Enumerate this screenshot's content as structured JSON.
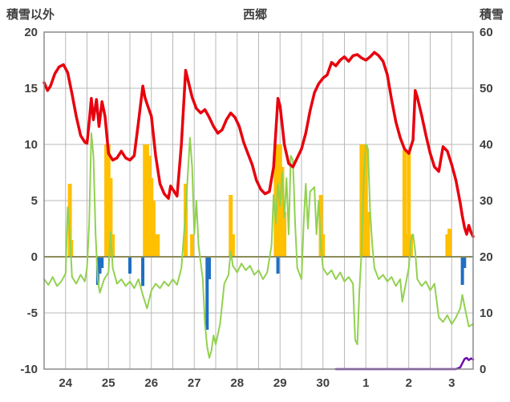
{
  "header": {
    "left_axis_title": "積雪以外",
    "title": "西郷",
    "right_axis_title": "積雪"
  },
  "chart_data": {
    "type": "line",
    "title": "西郷",
    "left_axis": {
      "label": "積雪以外",
      "min": -10,
      "max": 20,
      "ticks": [
        20,
        15,
        10,
        5,
        0,
        -5,
        -10
      ]
    },
    "right_axis": {
      "label": "積雪",
      "min": 0,
      "max": 60,
      "ticks": [
        60,
        50,
        40,
        30,
        20,
        10,
        0
      ]
    },
    "x_axis": {
      "day_labels": [
        "24",
        "25",
        "26",
        "27",
        "28",
        "29",
        "30",
        "1",
        "2",
        "3"
      ],
      "domain_days": 10,
      "gridline_step_days": 0.5
    },
    "colors": {
      "temperature_line": "#e8000d",
      "green_line": "#92d14f",
      "precip_bars": "#ffc000",
      "negative_bars": "#1f6fc4",
      "snow_depth_line": "#6a0dad",
      "grid": "#b8b8b8",
      "zero_line": "#8c8c5a",
      "frame": "#8c8c8c",
      "axis_text": "#3f3f3f"
    },
    "series": {
      "temperature_red": {
        "axis": "left",
        "points": [
          [
            0.0,
            15.5
          ],
          [
            0.08,
            14.8
          ],
          [
            0.15,
            15.2
          ],
          [
            0.25,
            16.3
          ],
          [
            0.35,
            16.9
          ],
          [
            0.45,
            17.1
          ],
          [
            0.55,
            16.4
          ],
          [
            0.65,
            14.5
          ],
          [
            0.75,
            12.5
          ],
          [
            0.85,
            10.8
          ],
          [
            0.95,
            10.2
          ],
          [
            1.0,
            10.1
          ],
          [
            1.05,
            12.0
          ],
          [
            1.1,
            14.1
          ],
          [
            1.15,
            12.2
          ],
          [
            1.22,
            14.0
          ],
          [
            1.28,
            11.6
          ],
          [
            1.35,
            13.8
          ],
          [
            1.42,
            12.5
          ],
          [
            1.5,
            9.2
          ],
          [
            1.6,
            8.6
          ],
          [
            1.7,
            8.8
          ],
          [
            1.8,
            9.4
          ],
          [
            1.9,
            8.8
          ],
          [
            2.0,
            8.6
          ],
          [
            2.1,
            9.0
          ],
          [
            2.2,
            12.0
          ],
          [
            2.3,
            15.2
          ],
          [
            2.35,
            14.2
          ],
          [
            2.4,
            13.6
          ],
          [
            2.5,
            12.5
          ],
          [
            2.6,
            9.0
          ],
          [
            2.7,
            6.5
          ],
          [
            2.8,
            5.6
          ],
          [
            2.9,
            5.2
          ],
          [
            2.95,
            6.3
          ],
          [
            3.0,
            6.0
          ],
          [
            3.1,
            5.4
          ],
          [
            3.2,
            10.0
          ],
          [
            3.3,
            16.6
          ],
          [
            3.35,
            15.8
          ],
          [
            3.45,
            14.2
          ],
          [
            3.55,
            13.2
          ],
          [
            3.65,
            12.8
          ],
          [
            3.75,
            13.1
          ],
          [
            3.85,
            12.4
          ],
          [
            3.95,
            11.6
          ],
          [
            4.05,
            11.0
          ],
          [
            4.15,
            11.3
          ],
          [
            4.25,
            12.2
          ],
          [
            4.35,
            12.8
          ],
          [
            4.45,
            12.4
          ],
          [
            4.55,
            11.6
          ],
          [
            4.65,
            10.2
          ],
          [
            4.75,
            9.2
          ],
          [
            4.85,
            8.2
          ],
          [
            4.95,
            6.8
          ],
          [
            5.05,
            6.0
          ],
          [
            5.15,
            5.6
          ],
          [
            5.25,
            5.8
          ],
          [
            5.35,
            8.0
          ],
          [
            5.45,
            14.1
          ],
          [
            5.5,
            13.4
          ],
          [
            5.6,
            10.0
          ],
          [
            5.7,
            8.3
          ],
          [
            5.8,
            8.0
          ],
          [
            5.9,
            8.8
          ],
          [
            6.0,
            9.6
          ],
          [
            6.1,
            11.0
          ],
          [
            6.2,
            13.0
          ],
          [
            6.3,
            14.6
          ],
          [
            6.4,
            15.4
          ],
          [
            6.5,
            15.9
          ],
          [
            6.6,
            16.2
          ],
          [
            6.7,
            17.3
          ],
          [
            6.8,
            17.0
          ],
          [
            6.9,
            17.5
          ],
          [
            7.0,
            17.8
          ],
          [
            7.1,
            17.4
          ],
          [
            7.2,
            17.9
          ],
          [
            7.3,
            18.0
          ],
          [
            7.4,
            17.7
          ],
          [
            7.5,
            17.5
          ],
          [
            7.6,
            17.8
          ],
          [
            7.7,
            18.2
          ],
          [
            7.8,
            17.9
          ],
          [
            7.9,
            17.4
          ],
          [
            8.0,
            16.2
          ],
          [
            8.1,
            14.0
          ],
          [
            8.2,
            12.0
          ],
          [
            8.3,
            10.6
          ],
          [
            8.4,
            9.6
          ],
          [
            8.5,
            9.2
          ],
          [
            8.6,
            10.4
          ],
          [
            8.65,
            14.8
          ],
          [
            8.7,
            14.2
          ],
          [
            8.8,
            12.6
          ],
          [
            8.9,
            10.8
          ],
          [
            9.0,
            9.2
          ],
          [
            9.1,
            8.0
          ],
          [
            9.2,
            7.6
          ],
          [
            9.3,
            9.8
          ],
          [
            9.4,
            9.4
          ],
          [
            9.5,
            8.2
          ],
          [
            9.6,
            6.8
          ],
          [
            9.7,
            4.8
          ],
          [
            9.75,
            3.6
          ],
          [
            9.8,
            2.6
          ],
          [
            9.85,
            2.0
          ],
          [
            9.9,
            2.8
          ],
          [
            9.95,
            2.2
          ],
          [
            10.0,
            1.8
          ]
        ]
      },
      "green_line": {
        "axis": "left",
        "points": [
          [
            0.0,
            -2.0
          ],
          [
            0.1,
            -2.5
          ],
          [
            0.2,
            -1.8
          ],
          [
            0.3,
            -2.6
          ],
          [
            0.4,
            -2.2
          ],
          [
            0.5,
            -1.5
          ],
          [
            0.55,
            4.4
          ],
          [
            0.6,
            2.0
          ],
          [
            0.65,
            -1.8
          ],
          [
            0.75,
            -2.4
          ],
          [
            0.85,
            -1.6
          ],
          [
            0.95,
            -2.2
          ],
          [
            1.0,
            -1.0
          ],
          [
            1.05,
            3.0
          ],
          [
            1.1,
            11.0
          ],
          [
            1.15,
            9.0
          ],
          [
            1.2,
            2.0
          ],
          [
            1.25,
            -2.0
          ],
          [
            1.3,
            -3.2
          ],
          [
            1.4,
            -2.0
          ],
          [
            1.5,
            -1.4
          ],
          [
            1.55,
            2.2
          ],
          [
            1.6,
            -1.0
          ],
          [
            1.7,
            -2.4
          ],
          [
            1.8,
            -2.0
          ],
          [
            1.9,
            -2.6
          ],
          [
            2.0,
            -2.2
          ],
          [
            2.1,
            -2.8
          ],
          [
            2.2,
            -2.0
          ],
          [
            2.3,
            -3.4
          ],
          [
            2.4,
            -4.6
          ],
          [
            2.5,
            -3.0
          ],
          [
            2.6,
            -2.4
          ],
          [
            2.7,
            -2.8
          ],
          [
            2.8,
            -2.2
          ],
          [
            2.9,
            -2.6
          ],
          [
            3.0,
            -2.0
          ],
          [
            3.1,
            -2.5
          ],
          [
            3.2,
            -1.0
          ],
          [
            3.3,
            4.0
          ],
          [
            3.4,
            10.6
          ],
          [
            3.45,
            8.0
          ],
          [
            3.5,
            2.0
          ],
          [
            3.55,
            5.0
          ],
          [
            3.6,
            1.0
          ],
          [
            3.7,
            -2.0
          ],
          [
            3.75,
            -6.0
          ],
          [
            3.8,
            -8.0
          ],
          [
            3.85,
            -9.0
          ],
          [
            3.9,
            -8.4
          ],
          [
            3.95,
            -7.0
          ],
          [
            4.0,
            -7.8
          ],
          [
            4.1,
            -6.0
          ],
          [
            4.2,
            -2.4
          ],
          [
            4.3,
            -1.6
          ],
          [
            4.35,
            0.5
          ],
          [
            4.4,
            -0.8
          ],
          [
            4.5,
            -1.4
          ],
          [
            4.6,
            -0.6
          ],
          [
            4.7,
            -1.2
          ],
          [
            4.8,
            -0.8
          ],
          [
            4.9,
            -1.6
          ],
          [
            5.0,
            -1.2
          ],
          [
            5.1,
            -2.0
          ],
          [
            5.2,
            -1.4
          ],
          [
            5.3,
            1.0
          ],
          [
            5.35,
            5.5
          ],
          [
            5.4,
            3.0
          ],
          [
            5.45,
            6.5
          ],
          [
            5.5,
            4.5
          ],
          [
            5.55,
            7.5
          ],
          [
            5.6,
            3.5
          ],
          [
            5.65,
            7.0
          ],
          [
            5.7,
            2.0
          ],
          [
            5.75,
            9.0
          ],
          [
            5.8,
            8.6
          ],
          [
            5.85,
            3.0
          ],
          [
            5.9,
            -1.0
          ],
          [
            6.0,
            -2.0
          ],
          [
            6.05,
            3.0
          ],
          [
            6.1,
            6.5
          ],
          [
            6.15,
            2.5
          ],
          [
            6.2,
            5.8
          ],
          [
            6.3,
            6.2
          ],
          [
            6.35,
            2.0
          ],
          [
            6.4,
            5.0
          ],
          [
            6.45,
            1.0
          ],
          [
            6.5,
            -1.0
          ],
          [
            6.6,
            -1.6
          ],
          [
            6.7,
            -1.2
          ],
          [
            6.8,
            -2.0
          ],
          [
            6.9,
            -1.4
          ],
          [
            7.0,
            -2.2
          ],
          [
            7.1,
            -1.8
          ],
          [
            7.2,
            -2.4
          ],
          [
            7.25,
            -7.4
          ],
          [
            7.3,
            -7.8
          ],
          [
            7.35,
            -3.0
          ],
          [
            7.4,
            0.5
          ],
          [
            7.45,
            7.0
          ],
          [
            7.5,
            10.0
          ],
          [
            7.55,
            9.6
          ],
          [
            7.6,
            4.0
          ],
          [
            7.65,
            1.0
          ],
          [
            7.7,
            -1.0
          ],
          [
            7.8,
            -2.0
          ],
          [
            7.9,
            -1.6
          ],
          [
            8.0,
            -2.2
          ],
          [
            8.1,
            -1.8
          ],
          [
            8.2,
            -2.6
          ],
          [
            8.3,
            -2.0
          ],
          [
            8.35,
            -4.0
          ],
          [
            8.4,
            -3.0
          ],
          [
            8.5,
            -1.0
          ],
          [
            8.55,
            1.5
          ],
          [
            8.6,
            2.0
          ],
          [
            8.65,
            0.5
          ],
          [
            8.7,
            -2.0
          ],
          [
            8.8,
            -2.6
          ],
          [
            8.9,
            -2.2
          ],
          [
            9.0,
            -3.0
          ],
          [
            9.1,
            -2.4
          ],
          [
            9.2,
            -5.4
          ],
          [
            9.3,
            -5.8
          ],
          [
            9.4,
            -5.2
          ],
          [
            9.5,
            -6.0
          ],
          [
            9.6,
            -5.4
          ],
          [
            9.7,
            -4.6
          ],
          [
            9.75,
            -3.4
          ],
          [
            9.8,
            -4.4
          ],
          [
            9.9,
            -6.2
          ],
          [
            10.0,
            -6.0
          ]
        ]
      },
      "orange_bars": {
        "axis": "left",
        "bars": [
          [
            0.6,
            6.5
          ],
          [
            0.63,
            1.5
          ],
          [
            1.45,
            10
          ],
          [
            1.5,
            10
          ],
          [
            1.55,
            7
          ],
          [
            1.6,
            2
          ],
          [
            2.35,
            10
          ],
          [
            2.4,
            10
          ],
          [
            2.45,
            9
          ],
          [
            2.5,
            7
          ],
          [
            2.55,
            5
          ],
          [
            2.6,
            2
          ],
          [
            2.65,
            2
          ],
          [
            3.3,
            6.5
          ],
          [
            3.45,
            2
          ],
          [
            4.35,
            5.5
          ],
          [
            4.4,
            2
          ],
          [
            5.4,
            10
          ],
          [
            5.45,
            10
          ],
          [
            5.5,
            10
          ],
          [
            5.55,
            8
          ],
          [
            5.6,
            4
          ],
          [
            6.45,
            5.5
          ],
          [
            6.5,
            2
          ],
          [
            7.4,
            10
          ],
          [
            7.45,
            10
          ],
          [
            7.5,
            10
          ],
          [
            7.55,
            4
          ],
          [
            8.4,
            9.5
          ],
          [
            8.45,
            2
          ],
          [
            8.5,
            9.5
          ],
          [
            8.55,
            2
          ],
          [
            9.4,
            2
          ],
          [
            9.45,
            2.5
          ]
        ]
      },
      "blue_bars": {
        "axis": "left",
        "bars": [
          [
            1.25,
            -2.5
          ],
          [
            1.3,
            -1.5
          ],
          [
            1.35,
            -1.0
          ],
          [
            2.0,
            -1.5
          ],
          [
            2.3,
            -2.6
          ],
          [
            3.8,
            -6.5
          ],
          [
            3.85,
            -2.0
          ],
          [
            5.45,
            -1.5
          ],
          [
            9.75,
            -2.5
          ],
          [
            9.8,
            -1.0
          ]
        ]
      },
      "snow_depth_purple": {
        "axis": "right",
        "points": [
          [
            6.8,
            0
          ],
          [
            8.0,
            0
          ],
          [
            9.0,
            0
          ],
          [
            9.6,
            0
          ],
          [
            9.7,
            0.3
          ],
          [
            9.8,
            1.8
          ],
          [
            9.85,
            2.0
          ],
          [
            9.9,
            1.6
          ],
          [
            9.95,
            1.9
          ],
          [
            10.0,
            1.7
          ]
        ]
      }
    }
  }
}
